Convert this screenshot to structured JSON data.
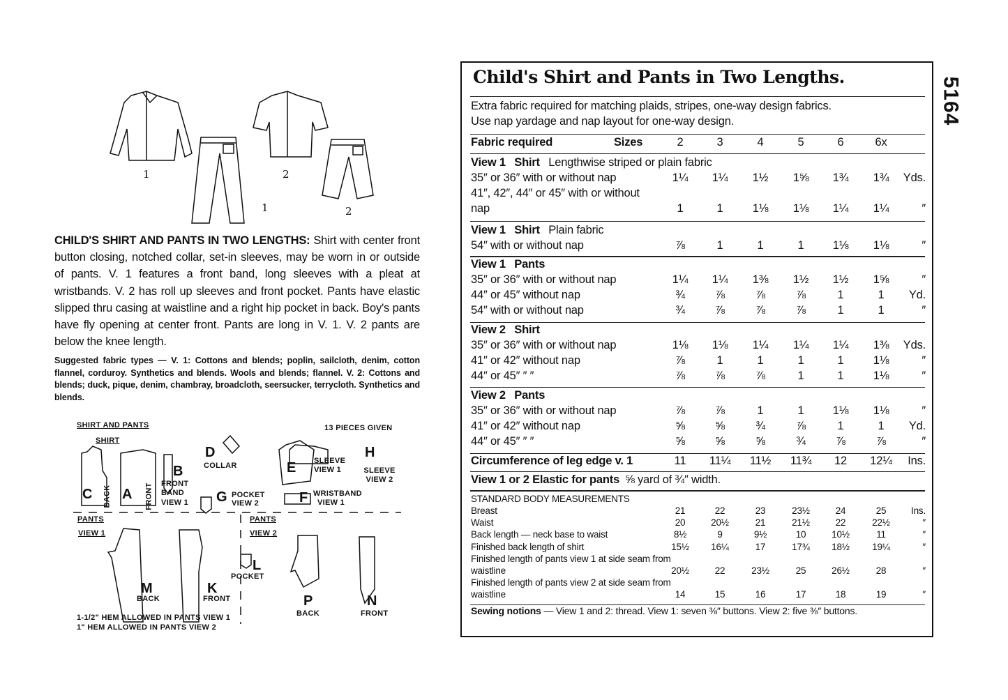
{
  "illustration": {
    "view_labels": [
      "1",
      "2",
      "1",
      "2"
    ]
  },
  "description": {
    "heading": "CHILD'S SHIRT AND PANTS IN TWO LENGTHS:",
    "body": "Shirt with center front button closing, notched collar, set-in sleeves, may be worn in or outside of pants. V. 1 features a front band, long sleeves with a pleat at wristbands. V. 2 has roll up sleeves and front pocket. Pants have elastic slipped thru casing at waistline and a right hip pocket in back. Boy's pants have fly opening at center front. Pants are long in V. 1. V. 2 pants are below the knee length."
  },
  "fabric_types": {
    "heading": "Suggested fabric types",
    "body": "— V. 1: Cottons and blends; poplin, sailcloth, denim, cotton flannel, corduroy. Synthetics and blends. Wools and blends; flannel. V. 2: Cottons and blends; duck, pique, denim, chambray, broadcloth, seersucker, terrycloth. Synthetics and blends."
  },
  "pieces": {
    "section_title": "SHIRT AND PANTS",
    "pieces_count": "13 PIECES GIVEN",
    "shirt_label": "SHIRT",
    "pants_view1_label": "PANTS",
    "pants_view1_sub": "VIEW 1",
    "pants_view2_label": "PANTS",
    "pants_view2_sub": "VIEW 2",
    "items": {
      "C": {
        "letter": "C",
        "name": "BACK"
      },
      "A": {
        "letter": "A",
        "name": "FRONT"
      },
      "B": {
        "letter": "B",
        "name": "FRONT BAND",
        "view": "VIEW 1"
      },
      "D": {
        "letter": "D",
        "name": "COLLAR"
      },
      "G": {
        "letter": "G",
        "name": "POCKET",
        "view": "VIEW 2"
      },
      "E": {
        "letter": "E",
        "name": "SLEEVE",
        "view": "VIEW 1"
      },
      "H": {
        "letter": "H",
        "name": "SLEEVE",
        "view": "VIEW 2"
      },
      "F": {
        "letter": "F",
        "name": "WRISTBAND",
        "view": "VIEW 1"
      },
      "M": {
        "letter": "M",
        "name": "BACK"
      },
      "K": {
        "letter": "K",
        "name": "FRONT"
      },
      "L": {
        "letter": "L",
        "name": "POCKET"
      },
      "P": {
        "letter": "P",
        "name": "BACK"
      },
      "N": {
        "letter": "N",
        "name": "FRONT"
      }
    },
    "hem_note_1": "1-1/2\" HEM ALLOWED IN PANTS VIEW 1",
    "hem_note_2": "1\" HEM ALLOWED IN PANTS VIEW 2"
  },
  "pattern_number": "5164",
  "chart": {
    "title": "Child's Shirt and Pants in Two Lengths.",
    "note_1": "Extra fabric required for matching plaids, stripes, one-way design fabrics.",
    "note_2": "Use nap yardage and nap layout for one-way design.",
    "header": {
      "label": "Fabric required",
      "sizes_label": "Sizes",
      "sizes": [
        "2",
        "3",
        "4",
        "5",
        "6",
        "6x"
      ]
    },
    "sections": [
      {
        "view": "View 1",
        "item": "Shirt",
        "desc": "Lengthwise striped or plain fabric",
        "rows": [
          {
            "label": "35″ or 36″ with or without nap",
            "values": [
              "1¼",
              "1¼",
              "1½",
              "1⅝",
              "1¾",
              "1¾"
            ],
            "unit": "Yds."
          },
          {
            "label": "41″, 42″, 44″ or 45″ with or without",
            "values": [],
            "unit": ""
          },
          {
            "label": "nap",
            "values": [
              "1",
              "1",
              "1⅛",
              "1⅛",
              "1¼",
              "1¼"
            ],
            "unit": "″"
          }
        ]
      },
      {
        "view": "View 1",
        "item": "Shirt",
        "desc": "Plain fabric",
        "rows": [
          {
            "label": "54″ with or without nap",
            "values": [
              "⅞",
              "1",
              "1",
              "1",
              "1⅛",
              "1⅛"
            ],
            "unit": "″"
          }
        ]
      },
      {
        "view": "View 1",
        "item": "Pants",
        "desc": "",
        "rows": [
          {
            "label": "35″ or 36″ with or without nap",
            "values": [
              "1¼",
              "1¼",
              "1⅜",
              "1½",
              "1½",
              "1⅝"
            ],
            "unit": "″"
          },
          {
            "label": "44″ or 45″ without nap",
            "values": [
              "¾",
              "⅞",
              "⅞",
              "⅞",
              "1",
              "1"
            ],
            "unit": "Yd."
          },
          {
            "label": "54″ with or without nap",
            "values": [
              "¾",
              "⅞",
              "⅞",
              "⅞",
              "1",
              "1"
            ],
            "unit": "″"
          }
        ]
      },
      {
        "view": "View 2",
        "item": "Shirt",
        "desc": "",
        "rows": [
          {
            "label": "35″ or 36″ with or without nap",
            "values": [
              "1⅛",
              "1⅛",
              "1¼",
              "1¼",
              "1¼",
              "1⅜"
            ],
            "unit": "Yds."
          },
          {
            "label": "41″ or 42″ without nap",
            "values": [
              "⅞",
              "1",
              "1",
              "1",
              "1",
              "1⅛"
            ],
            "unit": "″"
          },
          {
            "label": "44″ or 45″      ″      ″",
            "values": [
              "⅞",
              "⅞",
              "⅞",
              "1",
              "1",
              "1⅛"
            ],
            "unit": "″"
          }
        ]
      },
      {
        "view": "View 2",
        "item": "Pants",
        "desc": "",
        "rows": [
          {
            "label": "35″ or 36″ with or without nap",
            "values": [
              "⅞",
              "⅞",
              "1",
              "1",
              "1⅛",
              "1⅛"
            ],
            "unit": "″"
          },
          {
            "label": "41″ or 42″ without nap",
            "values": [
              "⅝",
              "⅝",
              "¾",
              "⅞",
              "1",
              "1"
            ],
            "unit": "Yd."
          },
          {
            "label": "44″ or 45″      ″      ″",
            "values": [
              "⅝",
              "⅝",
              "⅝",
              "¾",
              "⅞",
              "⅞"
            ],
            "unit": "″"
          }
        ]
      }
    ],
    "circumference": {
      "label": "Circumference of leg edge v. 1",
      "values": [
        "11",
        "11¼",
        "11½",
        "11¾",
        "12",
        "12¼"
      ],
      "unit": "Ins."
    },
    "elastic": {
      "label": "View 1 or 2  Elastic for pants",
      "value": "⅝ yard of ¾″ width."
    },
    "body": {
      "title": "STANDARD BODY MEASUREMENTS",
      "rows": [
        {
          "label": "Breast",
          "values": [
            "21",
            "22",
            "23",
            "23½",
            "24",
            "25"
          ],
          "unit": "Ins."
        },
        {
          "label": "Waist",
          "values": [
            "20",
            "20½",
            "21",
            "21½",
            "22",
            "22½"
          ],
          "unit": "″"
        },
        {
          "label": "Back length — neck base to waist",
          "values": [
            "8½",
            "9",
            "9½",
            "10",
            "10½",
            "11"
          ],
          "unit": "″"
        },
        {
          "label": "Finished back length of shirt",
          "values": [
            "15½",
            "16¼",
            "17",
            "17¾",
            "18½",
            "19¼"
          ],
          "unit": "″"
        },
        {
          "label": "Finished length of pants view 1 at side seam from",
          "values": [],
          "unit": ""
        },
        {
          "label": "waistline",
          "values": [
            "20½",
            "22",
            "23½",
            "25",
            "26½",
            "28"
          ],
          "unit": "″"
        },
        {
          "label": "Finished length of pants view 2 at side seam from",
          "values": [],
          "unit": ""
        },
        {
          "label": "waistline",
          "values": [
            "14",
            "15",
            "16",
            "17",
            "18",
            "19"
          ],
          "unit": "″"
        }
      ]
    },
    "notions": {
      "label": "Sewing notions",
      "text": "— View 1 and 2: thread. View 1: seven ⅜″ buttons. View 2: five ⅜″ buttons."
    }
  }
}
